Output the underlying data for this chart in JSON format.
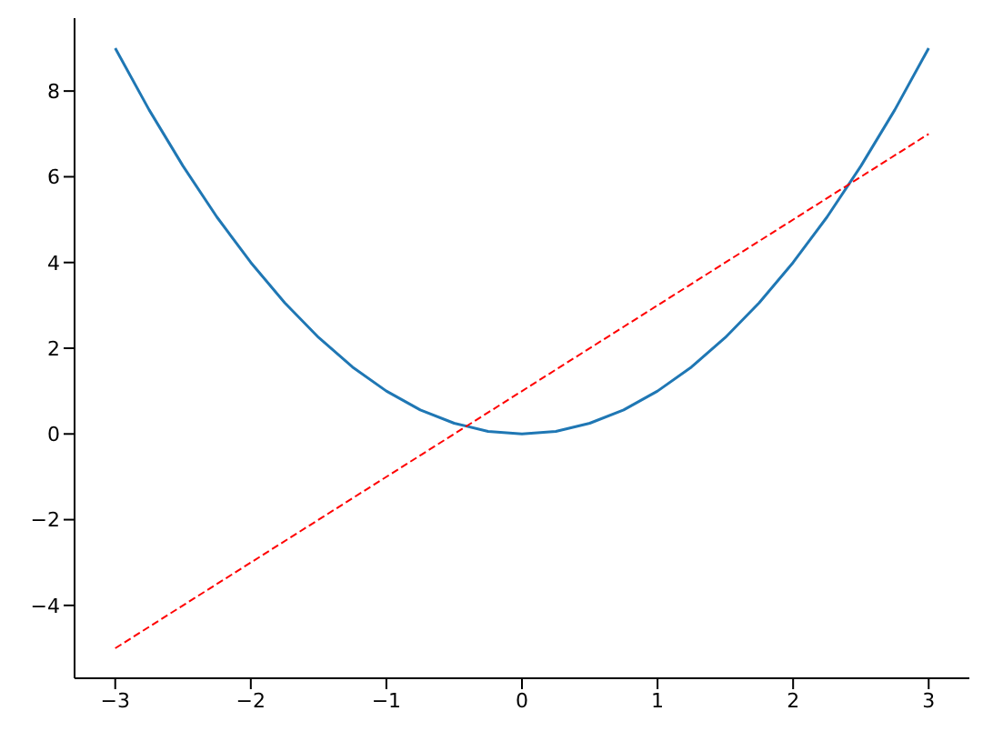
{
  "chart_data": {
    "type": "line",
    "xlim": [
      -3.3,
      3.3
    ],
    "ylim": [
      -5.7,
      9.7
    ],
    "xticks": [
      {
        "value": -3,
        "label": "−3"
      },
      {
        "value": -2,
        "label": "−2"
      },
      {
        "value": -1,
        "label": "−1"
      },
      0,
      1,
      2,
      3
    ],
    "yticks": [
      {
        "value": -4,
        "label": "−4"
      },
      {
        "value": -2,
        "label": "−2"
      },
      0,
      2,
      4,
      6,
      8
    ],
    "series": [
      {
        "color": "#1f77b4",
        "line_style": "solid",
        "x": [
          -3,
          -2.75,
          -2.5,
          -2.25,
          -2,
          -1.75,
          -1.5,
          -1.25,
          -1,
          -0.75,
          -0.5,
          -0.25,
          0,
          0.25,
          0.5,
          0.75,
          1,
          1.25,
          1.5,
          1.75,
          2,
          2.25,
          2.5,
          2.75,
          3
        ],
        "values": [
          9,
          7.56,
          6.25,
          5.06,
          4,
          3.06,
          2.25,
          1.56,
          1,
          0.56,
          0.25,
          0.06,
          0,
          0.06,
          0.25,
          0.56,
          1,
          1.56,
          2.25,
          3.06,
          4,
          5.06,
          6.25,
          7.56,
          9
        ]
      },
      {
        "color": "#ff0000",
        "line_style": "dashed",
        "x": [
          -3,
          3
        ],
        "values": [
          -5,
          7
        ]
      }
    ]
  }
}
